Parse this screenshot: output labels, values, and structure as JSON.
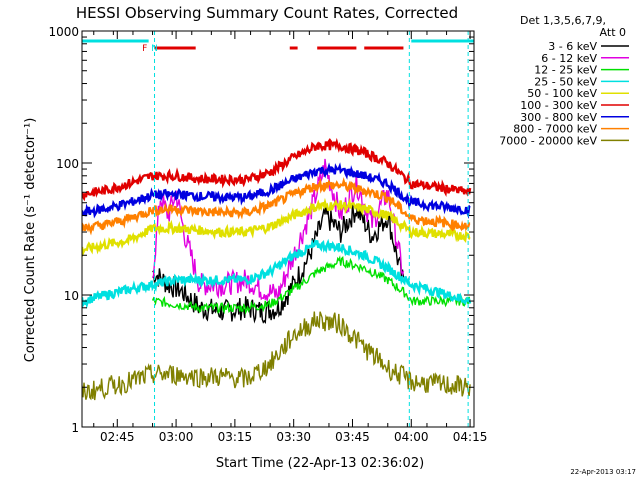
{
  "chart_data": {
    "type": "line",
    "title": "HESSI Observing Summary Count Rates, Corrected",
    "xlabel": "Start Time (22-Apr-13 02:36:02)",
    "ylabel": "Corrected Count Rate (s⁻¹ detector⁻¹)",
    "yscale": "log",
    "ylim": [
      1,
      1000
    ],
    "xlim_minutes_after_0236": [
      0,
      100
    ],
    "x_tick_labels": [
      "02:45",
      "03:00",
      "03:15",
      "03:30",
      "03:45",
      "04:00",
      "04:15"
    ],
    "x_tick_minutes": [
      9,
      24,
      39,
      54,
      69,
      84,
      99
    ],
    "y_tick_labels": [
      "1",
      "10",
      "100",
      "1000"
    ],
    "y_ticks": [
      1,
      10,
      100,
      1000
    ],
    "legend_header": [
      "Det 1,3,5,6,7,9,",
      "Att 0"
    ],
    "legend_position": "right",
    "flags": [
      {
        "label": "F",
        "color": "#e00000",
        "minute": 16
      },
      {
        "label": "N",
        "color": "#00e0e0",
        "minute": 18.5
      }
    ],
    "saa_bars_minutes": [
      [
        0,
        17
      ],
      [
        84,
        100
      ]
    ],
    "flare_bars_minutes": [
      [
        18.5,
        29
      ],
      [
        53,
        55
      ],
      [
        60,
        70
      ],
      [
        72,
        82
      ]
    ],
    "night_lines_minutes": [
      18.5,
      83.5,
      98.5
    ],
    "series": [
      {
        "name": "3 - 6 keV",
        "color": "#000000",
        "x": [
          18,
          22,
          25,
          30,
          36,
          42,
          46,
          50,
          54,
          58,
          62,
          66,
          70,
          74,
          78,
          82
        ],
        "y": [
          15,
          12,
          11,
          8,
          7.5,
          8,
          7.5,
          8,
          12,
          20,
          40,
          30,
          45,
          28,
          40,
          12
        ]
      },
      {
        "name": "6 - 12 keV",
        "color": "#e000e0",
        "x": [
          18,
          20,
          22,
          24,
          26,
          30,
          36,
          42,
          46,
          50,
          54,
          58,
          62,
          66,
          70,
          74,
          78,
          82
        ],
        "y": [
          14,
          55,
          40,
          60,
          30,
          12,
          12,
          13,
          11,
          10,
          20,
          40,
          95,
          40,
          70,
          35,
          60,
          14
        ]
      },
      {
        "name": "12 - 25 keV",
        "color": "#00e000",
        "x": [
          18,
          24,
          30,
          36,
          42,
          48,
          54,
          60,
          66,
          72,
          78,
          83,
          84,
          99
        ],
        "y": [
          9,
          8.5,
          8,
          8,
          8,
          8.5,
          11,
          15,
          18,
          16,
          13,
          10,
          9,
          9
        ]
      },
      {
        "name": "25 - 50 keV",
        "color": "#00e0e0",
        "x": [
          0,
          6,
          12,
          18,
          24,
          30,
          36,
          42,
          48,
          54,
          60,
          66,
          72,
          78,
          84,
          99
        ],
        "y": [
          9,
          10,
          11,
          12,
          13,
          13,
          13,
          13,
          15,
          20,
          24,
          23,
          20,
          16,
          12,
          9
        ]
      },
      {
        "name": "50 - 100 keV",
        "color": "#e0e000",
        "x": [
          0,
          6,
          12,
          18,
          24,
          30,
          36,
          42,
          48,
          54,
          60,
          66,
          72,
          78,
          84,
          99
        ],
        "y": [
          22,
          24,
          26,
          32,
          32,
          31,
          30,
          30,
          33,
          40,
          47,
          48,
          45,
          40,
          30,
          28
        ]
      },
      {
        "name": "100 - 300 keV",
        "color": "#e00000",
        "x": [
          0,
          6,
          12,
          18,
          24,
          30,
          36,
          42,
          48,
          54,
          60,
          66,
          72,
          78,
          84,
          99
        ],
        "y": [
          58,
          62,
          70,
          80,
          80,
          76,
          75,
          75,
          85,
          110,
          135,
          135,
          120,
          100,
          70,
          60
        ]
      },
      {
        "name": "300 - 800 keV",
        "color": "#0000e0",
        "x": [
          0,
          6,
          12,
          18,
          24,
          30,
          36,
          42,
          48,
          54,
          60,
          66,
          72,
          78,
          84,
          99
        ],
        "y": [
          42,
          45,
          50,
          57,
          58,
          56,
          55,
          55,
          62,
          75,
          88,
          88,
          80,
          70,
          50,
          44
        ]
      },
      {
        "name": "800 - 7000 keV",
        "color": "#ff8000",
        "x": [
          0,
          6,
          12,
          18,
          24,
          30,
          36,
          42,
          48,
          54,
          60,
          66,
          72,
          78,
          84,
          99
        ],
        "y": [
          32,
          34,
          38,
          44,
          45,
          43,
          42,
          42,
          48,
          58,
          68,
          68,
          62,
          55,
          38,
          33
        ]
      },
      {
        "name": "7000 - 20000 keV",
        "color": "#808000",
        "x": [
          0,
          6,
          12,
          18,
          24,
          30,
          36,
          42,
          48,
          54,
          60,
          66,
          72,
          78,
          84,
          99
        ],
        "y": [
          1.8,
          2.0,
          2.2,
          2.5,
          2.5,
          2.4,
          2.4,
          2.3,
          3.0,
          5.0,
          6.5,
          6.0,
          4.0,
          2.8,
          2.2,
          2.0
        ]
      }
    ]
  },
  "footer_date": "22-Apr-2013 03:17"
}
